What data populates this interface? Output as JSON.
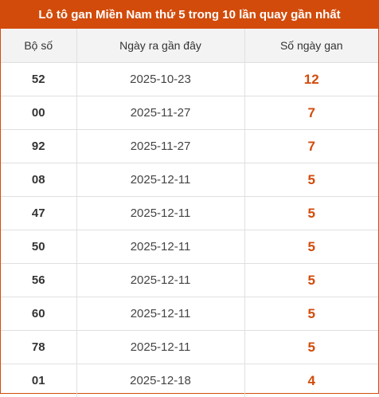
{
  "title": "Lô tô gan Miền Nam thứ 5 trong 10 lần quay gần nhất",
  "columns": [
    "Bộ số",
    "Ngày ra gần đây",
    "Số ngày gan"
  ],
  "rows": [
    {
      "number": "52",
      "date": "2025-10-23",
      "days": "12"
    },
    {
      "number": "00",
      "date": "2025-11-27",
      "days": "7"
    },
    {
      "number": "92",
      "date": "2025-11-27",
      "days": "7"
    },
    {
      "number": "08",
      "date": "2025-12-11",
      "days": "5"
    },
    {
      "number": "47",
      "date": "2025-12-11",
      "days": "5"
    },
    {
      "number": "50",
      "date": "2025-12-11",
      "days": "5"
    },
    {
      "number": "56",
      "date": "2025-12-11",
      "days": "5"
    },
    {
      "number": "60",
      "date": "2025-12-11",
      "days": "5"
    },
    {
      "number": "78",
      "date": "2025-12-11",
      "days": "5"
    },
    {
      "number": "01",
      "date": "2025-12-18",
      "days": "4"
    }
  ],
  "colors": {
    "accent": "#d24b0b",
    "header_bg": "#f3f3f3",
    "border": "#e0e0e0"
  }
}
